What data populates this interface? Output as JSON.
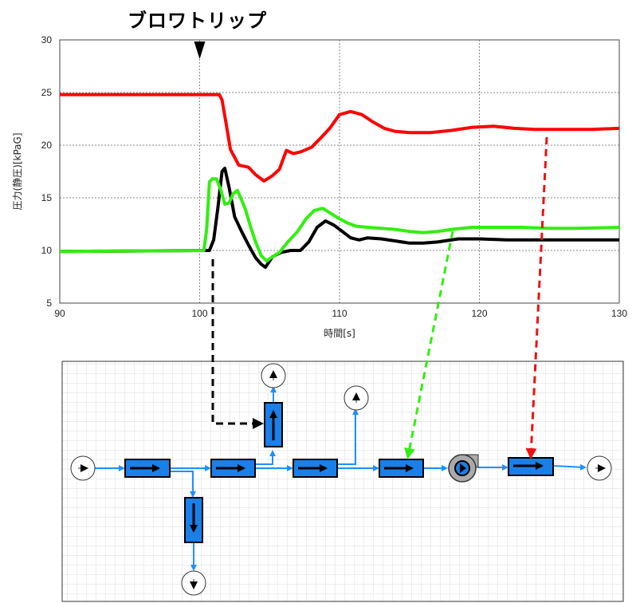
{
  "annotation": {
    "trip_label": "ブロワトリップ",
    "trip_x": 100
  },
  "chart_data": {
    "type": "line",
    "xlabel": "時間[s]",
    "ylabel": "圧力(静圧)[kPaG]",
    "xlim": [
      90,
      130
    ],
    "ylim": [
      5,
      30
    ],
    "xticks": [
      90,
      100,
      110,
      120,
      130
    ],
    "yticks": [
      5,
      10,
      15,
      20,
      25,
      30
    ],
    "grid": true,
    "series": [
      {
        "color": "#ff0000",
        "x": [
          90,
          101.4,
          101.6,
          101.9,
          102.2,
          102.8,
          103.5,
          104.0,
          104.6,
          105.2,
          105.7,
          106.2,
          106.7,
          107.3,
          108.0,
          108.6,
          109.3,
          110.0,
          110.8,
          111.6,
          112.4,
          113.2,
          114.0,
          115.0,
          116.5,
          118.0,
          119.5,
          121.0,
          122.5,
          124.0,
          126.0,
          128.0,
          130.0
        ],
        "y": [
          24.8,
          24.8,
          24.3,
          22.0,
          19.6,
          18.1,
          17.9,
          17.2,
          16.6,
          17.1,
          17.7,
          19.5,
          19.2,
          19.4,
          19.8,
          20.6,
          21.6,
          22.9,
          23.2,
          22.9,
          22.2,
          21.6,
          21.3,
          21.2,
          21.2,
          21.4,
          21.7,
          21.8,
          21.6,
          21.5,
          21.5,
          21.5,
          21.6
        ]
      },
      {
        "color": "#000000",
        "x": [
          90,
          100.7,
          101.0,
          101.3,
          101.6,
          101.8,
          102.1,
          102.5,
          103.0,
          103.5,
          104.0,
          104.4,
          104.7,
          105.2,
          105.8,
          106.5,
          107.2,
          107.8,
          108.4,
          109.0,
          109.6,
          110.2,
          110.8,
          111.4,
          112.0,
          113.0,
          114.0,
          115.0,
          116.0,
          117.0,
          118.5,
          120.0,
          122.0,
          124.0,
          126.0,
          128.0,
          130.0
        ],
        "y": [
          9.9,
          10.0,
          11.0,
          14.0,
          17.5,
          17.8,
          16.0,
          13.2,
          11.8,
          10.5,
          9.3,
          8.7,
          8.4,
          9.4,
          9.8,
          10.0,
          10.0,
          10.8,
          12.2,
          12.8,
          12.4,
          11.8,
          11.2,
          11.0,
          11.2,
          11.1,
          10.9,
          10.7,
          10.7,
          10.8,
          11.1,
          11.1,
          11.0,
          11.0,
          11.0,
          11.0,
          11.0
        ]
      },
      {
        "color": "#33ee11",
        "x": [
          90,
          100.3,
          100.5,
          100.7,
          100.9,
          101.2,
          101.5,
          101.8,
          102.1,
          102.4,
          102.7,
          103.0,
          103.3,
          103.6,
          104.0,
          104.4,
          104.8,
          105.2,
          105.7,
          106.3,
          107.0,
          107.6,
          108.2,
          108.8,
          109.4,
          110.0,
          110.6,
          111.2,
          112.0,
          113.0,
          114.0,
          115.0,
          116.0,
          117.0,
          118.0,
          119.5,
          121.0,
          123.0,
          125.0,
          127.0,
          130.0
        ],
        "y": [
          9.9,
          10.0,
          12.0,
          16.5,
          16.8,
          16.8,
          15.8,
          14.4,
          14.5,
          15.4,
          15.7,
          14.8,
          13.8,
          12.4,
          10.8,
          9.5,
          9.0,
          9.4,
          9.8,
          10.8,
          11.8,
          13.0,
          13.8,
          14.0,
          13.5,
          13.0,
          12.6,
          12.3,
          12.2,
          12.1,
          12.0,
          11.8,
          11.7,
          11.8,
          12.0,
          12.2,
          12.2,
          12.2,
          12.1,
          12.1,
          12.2
        ]
      }
    ]
  },
  "diagram": {
    "line_color": "#1e90ff",
    "component_fill": "#1a7fe8",
    "arrow_red": "#ee1111",
    "arrow_green": "#33ee11",
    "arrow_black": "#000000"
  }
}
